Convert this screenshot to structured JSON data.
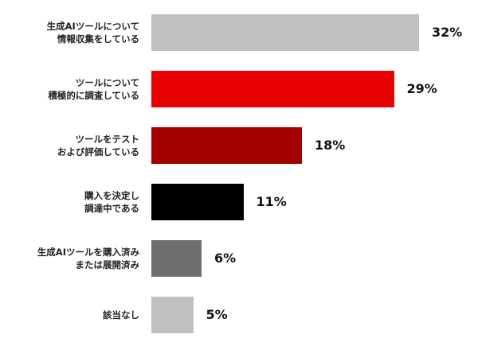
{
  "chart_data": {
    "type": "bar",
    "orientation": "horizontal",
    "categories": [
      "生成AIツールについて\n情報収集をしている",
      "ツールについて\n積極的に調査している",
      "ツールをテスト\nおよび評価している",
      "購入を決定し\n調達中である",
      "生成AIツールを購入済み\nまたは展開済み",
      "該当なし"
    ],
    "values": [
      32,
      29,
      18,
      11,
      6,
      5
    ],
    "data_labels": [
      "32%",
      "29%",
      "18%",
      "11%",
      "6%",
      "5%"
    ],
    "colors": [
      "#c0c0c0",
      "#e60000",
      "#a30000",
      "#000000",
      "#6f6f6f",
      "#c0c0c0"
    ],
    "title": "",
    "xlabel": "",
    "ylabel": "",
    "xlim": [
      0,
      32
    ],
    "grid": false,
    "legend": "none"
  }
}
